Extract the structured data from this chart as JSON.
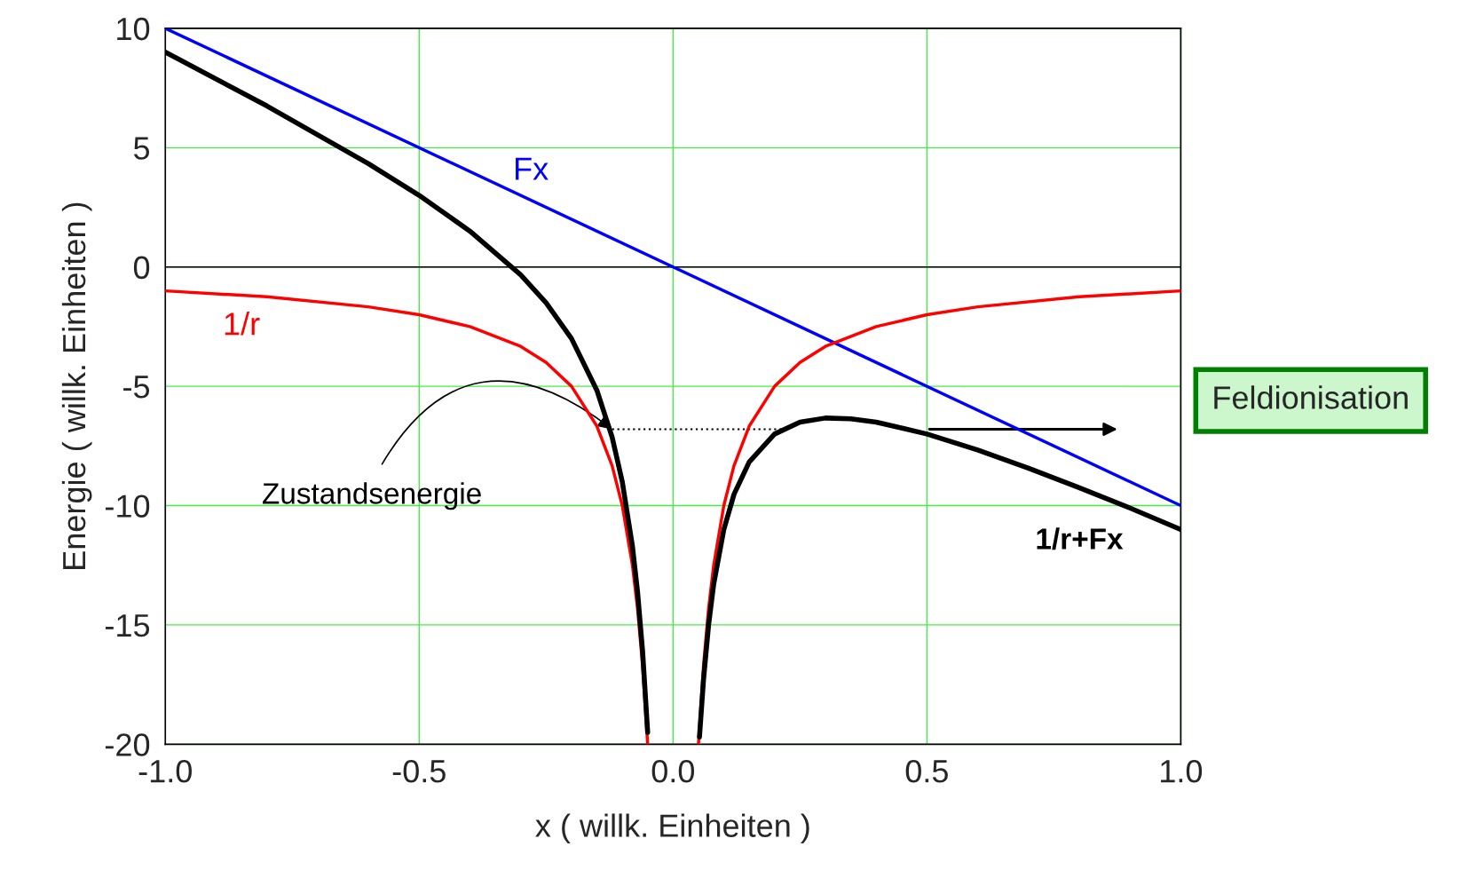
{
  "chart_data": {
    "type": "line",
    "xlabel": "x ( willk. Einheiten )",
    "ylabel": "Energie ( willk. Einheiten )",
    "xlim": [
      -1.0,
      1.0
    ],
    "ylim": [
      -20,
      10
    ],
    "xticks": [
      {
        "value": -1.0,
        "label": "-1.0"
      },
      {
        "value": -0.5,
        "label": "-0.5"
      },
      {
        "value": 0.0,
        "label": "0.0"
      },
      {
        "value": 0.5,
        "label": "0.5"
      },
      {
        "value": 1.0,
        "label": "1.0"
      }
    ],
    "yticks": [
      -20,
      -15,
      -10,
      -5,
      0,
      5,
      10
    ],
    "grid": true,
    "legend": false,
    "marker": "none",
    "series": [
      {
        "name": "Fx",
        "color": "#0000ff",
        "x": [
          -1.0,
          1.0
        ],
        "values": [
          10,
          -10
        ]
      },
      {
        "name": "1/r",
        "color": "#ff0000",
        "x": [
          -1.0,
          -0.8,
          -0.6,
          -0.5,
          -0.4,
          -0.3,
          -0.25,
          -0.2,
          -0.15,
          -0.12,
          -0.1,
          -0.08,
          -0.07,
          -0.06,
          -0.05,
          0.0,
          0.05,
          0.06,
          0.07,
          0.08,
          0.1,
          0.12,
          0.15,
          0.2,
          0.25,
          0.3,
          0.4,
          0.5,
          0.6,
          0.8,
          1.0
        ],
        "values": [
          -1,
          -1.25,
          -1.67,
          -2,
          -2.5,
          -3.33,
          -4,
          -5,
          -6.67,
          -8.33,
          -10,
          -12.5,
          -14.3,
          -16.7,
          -20,
          null,
          -20,
          -16.7,
          -14.3,
          -12.5,
          -10,
          -8.33,
          -6.67,
          -5,
          -4,
          -3.33,
          -2.5,
          -2,
          -1.67,
          -1.25,
          -1
        ]
      },
      {
        "name": "1/r+Fx",
        "color": "#000000",
        "x": [
          -1.0,
          -0.8,
          -0.6,
          -0.5,
          -0.4,
          -0.3,
          -0.25,
          -0.2,
          -0.15,
          -0.12,
          -0.1,
          -0.08,
          -0.07,
          -0.06,
          -0.05,
          0.0,
          0.052,
          0.06,
          0.07,
          0.08,
          0.1,
          0.12,
          0.15,
          0.2,
          0.25,
          0.3,
          0.35,
          0.4,
          0.5,
          0.6,
          0.7,
          0.8,
          0.9,
          1.0
        ],
        "values": [
          9,
          6.75,
          4.33,
          3,
          1.5,
          -0.33,
          -1.5,
          -3,
          -5.17,
          -7.13,
          -9,
          -11.7,
          -13.6,
          -16.1,
          -19.5,
          null,
          -19.7,
          -17.3,
          -15,
          -13.3,
          -11,
          -9.53,
          -8.17,
          -7,
          -6.5,
          -6.33,
          -6.36,
          -6.5,
          -7,
          -7.67,
          -8.43,
          -9.25,
          -10.1,
          -11
        ]
      }
    ],
    "ref_lines": [
      {
        "axis": "y",
        "value": 0,
        "color": "#000000"
      }
    ],
    "annotations": [
      {
        "text": "Zustandsenergie",
        "x": -0.12,
        "y": -6.8
      },
      "Feldionisation"
    ]
  }
}
